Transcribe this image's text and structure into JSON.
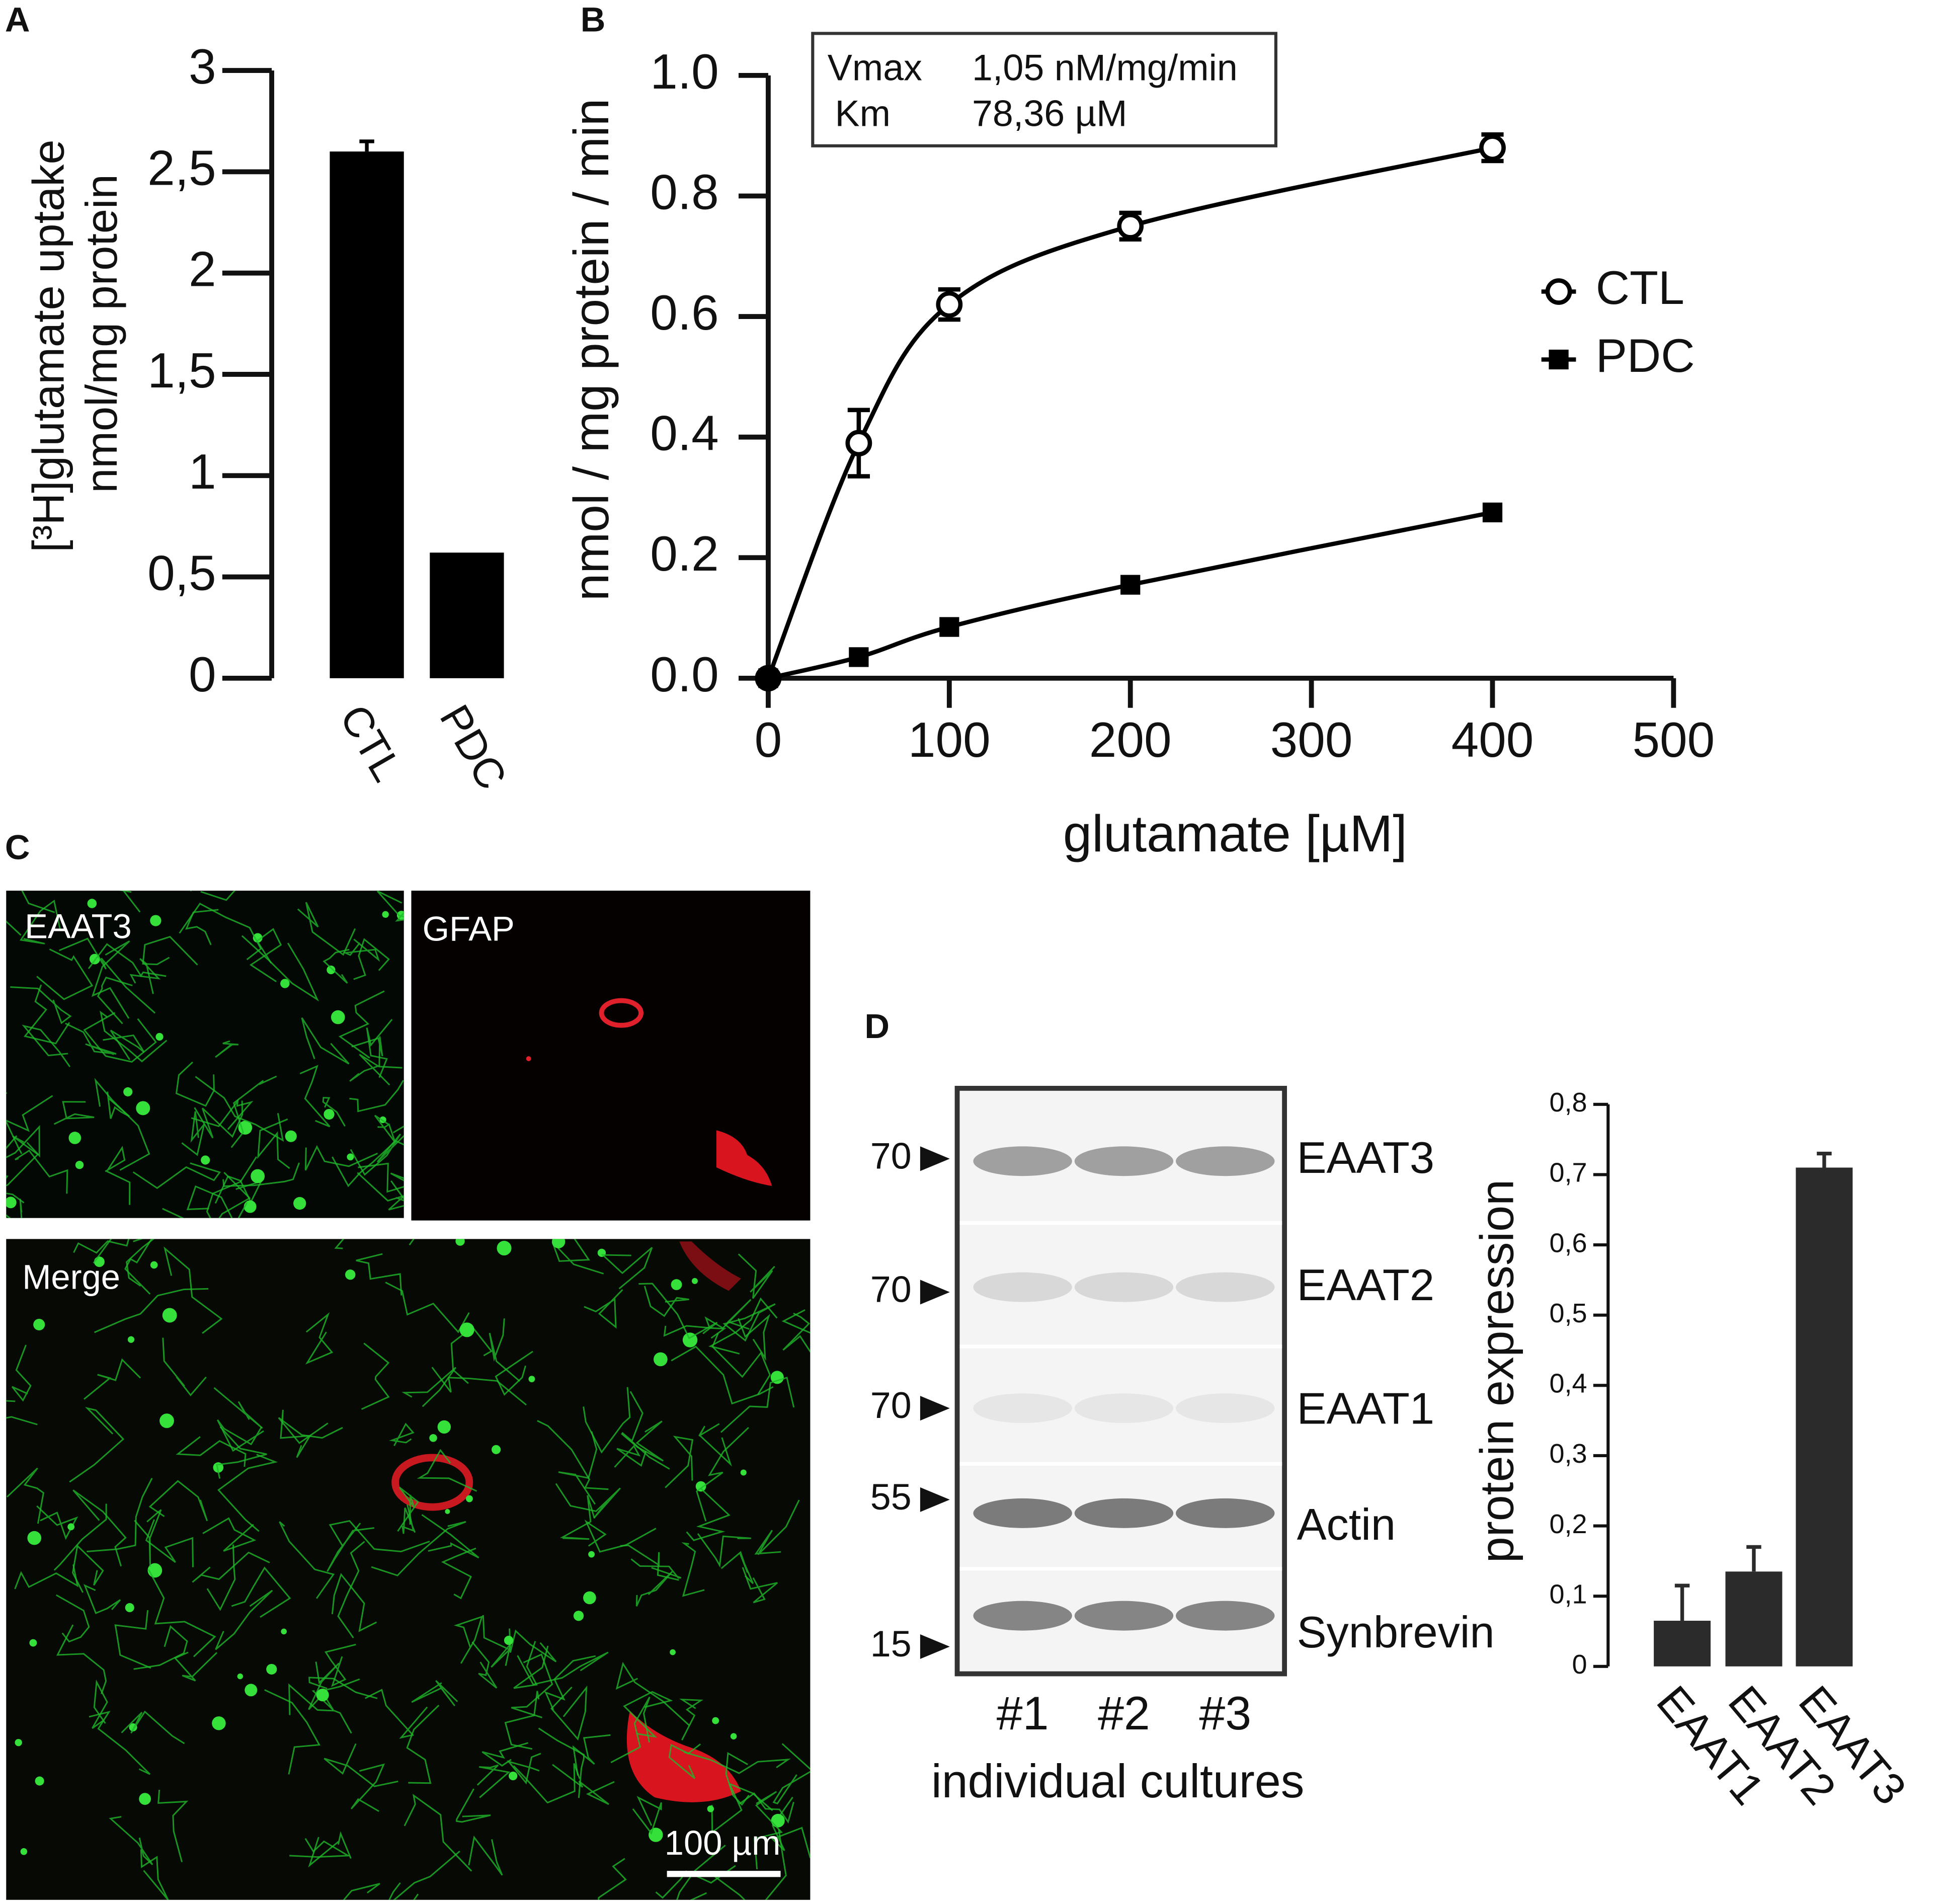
{
  "chart_data": [
    {
      "type": "bar",
      "panel": "A",
      "ylabel": [
        "[³H]glutamate uptake",
        "nmol/mg protein"
      ],
      "categories": [
        "CTL",
        "PDC"
      ],
      "values": [
        2.6,
        0.62
      ],
      "errors": [
        0.05,
        null
      ],
      "color": "#000000",
      "ylim": [
        0,
        3
      ],
      "yticks": [
        0,
        {
          "value": 0.5,
          "label": "0,5"
        },
        1,
        {
          "value": 1.5,
          "label": "1,5"
        },
        2,
        {
          "value": 2.5,
          "label": "2,5"
        },
        3
      ]
    },
    {
      "type": "line",
      "panel": "B",
      "ylabel": "nmol / mg protein / min",
      "xlabel": "glutamate [µM]",
      "annotation": [
        [
          "Vmax",
          "1,05 nM/mg/min"
        ],
        [
          "Km",
          "78,36 µM"
        ]
      ],
      "x": [
        0,
        50,
        100,
        200,
        400
      ],
      "series": [
        {
          "name": "CTL",
          "color": "#000000",
          "marker": "open-circle",
          "values": [
            0,
            0.39,
            0.62,
            0.75,
            0.88
          ],
          "errors": [
            null,
            0.055,
            0.025,
            0.022,
            0.022
          ]
        },
        {
          "name": "PDC",
          "color": "#000000",
          "marker": "filled-square",
          "values": [
            0,
            0.035,
            0.085,
            0.155,
            0.275
          ]
        }
      ],
      "xlim": [
        0,
        500
      ],
      "xticks": [
        0,
        100,
        200,
        300,
        400,
        500
      ],
      "ylim": [
        0,
        1
      ],
      "yticks": [
        {
          "value": 0,
          "label": "0.0"
        },
        0.2,
        0.4,
        0.6,
        0.8,
        {
          "value": 1,
          "label": "1.0"
        }
      ]
    },
    {
      "type": "bar",
      "ylabel": "protein expression",
      "categories": [
        "EAAT1",
        "EAAT2",
        "EAAT3"
      ],
      "values": [
        0.065,
        0.135,
        0.71
      ],
      "errors": [
        0.05,
        0.035,
        0.02
      ],
      "color": "#2b2b2b",
      "ylim": [
        0,
        0.8
      ],
      "yticks": [
        0,
        {
          "value": 0.1,
          "label": "0,1"
        },
        {
          "value": 0.2,
          "label": "0,2"
        },
        {
          "value": 0.3,
          "label": "0,3"
        },
        {
          "value": 0.4,
          "label": "0,4"
        },
        {
          "value": 0.5,
          "label": "0,5"
        },
        {
          "value": 0.6,
          "label": "0,6"
        },
        {
          "value": 0.7,
          "label": "0,7"
        },
        {
          "value": 0.8,
          "label": "0,8"
        }
      ]
    }
  ],
  "panel_c": {
    "panel": "C",
    "images": [
      "EAAT3",
      "GFAP",
      "Merge"
    ],
    "scale_bar": "100 µm"
  },
  "blot": {
    "panel": "D",
    "sizes": [
      70,
      70,
      70,
      55,
      15
    ],
    "bands": [
      "EAAT3",
      "EAAT2",
      "EAAT1",
      "Actin",
      "Synbrevin"
    ],
    "lanes": [
      "#1",
      "#2",
      "#3"
    ],
    "xlabel": "individual cultures"
  }
}
